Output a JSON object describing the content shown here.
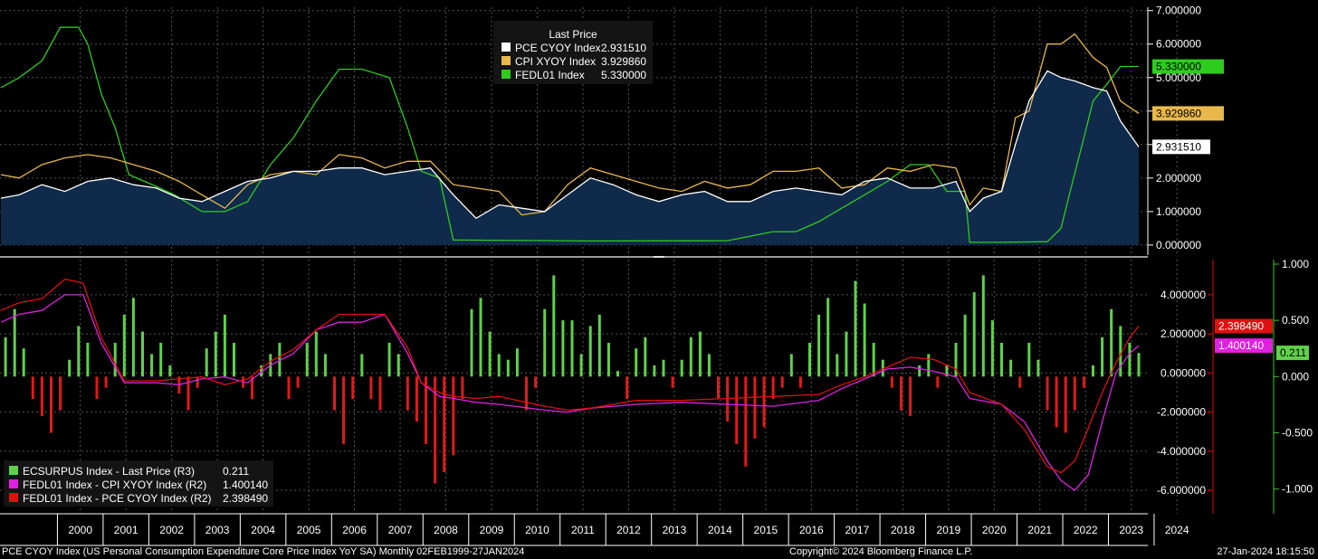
{
  "footer": {
    "left": "PCE CYOY Index (US Personal Consumption Expenditure Core Price Index YoY SA)  Monthly 02FEB1999-27JAN2024",
    "center": "Copyright© 2024 Bloomberg Finance L.P.",
    "right": "27-Jan-2024 18:15:50"
  },
  "colors": {
    "pce": "#ffffff",
    "cpi": "#e8b84a",
    "fed": "#2ecc1e",
    "area": "#0f2a4a",
    "bar_pos": "#5fd14a",
    "bar_neg": "#e01a1a",
    "spread_cpi": "#e020e0",
    "spread_pce": "#e01010",
    "axis_r2": "#e01010",
    "axis_r3": "#35c823",
    "grid": "#555555"
  },
  "chart_data": [
    {
      "type": "line",
      "panel": "top",
      "legend_title": "Last Price",
      "x_range": [
        1999.08,
        2024.08
      ],
      "ylim": [
        -0.3,
        7.1
      ],
      "y_ticks": [
        "7.000000",
        "6.000000",
        "5.000000",
        "4.000000",
        "3.000000",
        "2.000000",
        "1.000000",
        "0.000000"
      ],
      "y_tick_values": [
        7,
        6,
        5,
        4,
        3,
        2,
        1,
        0
      ],
      "x_ticks": [
        "2000",
        "2001",
        "2002",
        "2003",
        "2004",
        "2005",
        "2006",
        "2007",
        "2008",
        "2009",
        "2010",
        "2011",
        "2012",
        "2013",
        "2014",
        "2015",
        "2016",
        "2017",
        "2018",
        "2019",
        "2020",
        "2021",
        "2022",
        "2023",
        "2024"
      ],
      "series": [
        {
          "name": "PCE CYOY Index",
          "last": "2.931510",
          "fill": true,
          "x": [
            1999.1,
            1999.5,
            2000.0,
            2000.5,
            2001.0,
            2001.5,
            2002.0,
            2002.5,
            2003.0,
            2003.5,
            2004.0,
            2004.5,
            2005.0,
            2005.5,
            2006.0,
            2006.5,
            2007.0,
            2007.5,
            2008.0,
            2008.5,
            2009.0,
            2009.5,
            2010.0,
            2010.5,
            2011.0,
            2011.5,
            2012.0,
            2012.5,
            2013.0,
            2013.5,
            2014.0,
            2014.5,
            2015.0,
            2015.5,
            2016.0,
            2016.5,
            2017.0,
            2017.5,
            2018.0,
            2018.5,
            2019.0,
            2019.5,
            2020.0,
            2020.3,
            2020.6,
            2021.0,
            2021.3,
            2021.6,
            2022.0,
            2022.3,
            2022.6,
            2023.0,
            2023.3,
            2023.6,
            2024.0
          ],
          "values": [
            1.4,
            1.5,
            1.8,
            1.6,
            1.9,
            2.0,
            1.8,
            1.7,
            1.4,
            1.3,
            1.6,
            1.9,
            2.0,
            2.2,
            2.2,
            2.3,
            2.3,
            2.1,
            2.2,
            2.3,
            1.5,
            0.8,
            1.2,
            1.1,
            1.0,
            1.5,
            2.0,
            1.8,
            1.5,
            1.3,
            1.5,
            1.6,
            1.3,
            1.3,
            1.6,
            1.7,
            1.6,
            1.5,
            1.9,
            2.0,
            1.7,
            1.7,
            1.9,
            1.0,
            1.4,
            1.6,
            3.0,
            4.3,
            5.2,
            5.0,
            4.9,
            4.7,
            4.6,
            3.7,
            2.93
          ]
        },
        {
          "name": "CPI XYOY Index",
          "last": "3.929860",
          "x": [
            1999.1,
            1999.5,
            2000.0,
            2000.5,
            2001.0,
            2001.5,
            2002.0,
            2002.5,
            2003.0,
            2003.5,
            2004.0,
            2004.5,
            2005.0,
            2005.5,
            2006.0,
            2006.5,
            2007.0,
            2007.5,
            2008.0,
            2008.5,
            2009.0,
            2009.5,
            2010.0,
            2010.5,
            2011.0,
            2011.5,
            2012.0,
            2012.5,
            2013.0,
            2013.5,
            2014.0,
            2014.5,
            2015.0,
            2015.5,
            2016.0,
            2016.5,
            2017.0,
            2017.5,
            2018.0,
            2018.5,
            2019.0,
            2019.5,
            2020.0,
            2020.3,
            2020.6,
            2021.0,
            2021.3,
            2021.6,
            2022.0,
            2022.3,
            2022.6,
            2023.0,
            2023.3,
            2023.6,
            2024.0
          ],
          "values": [
            2.1,
            2.0,
            2.4,
            2.6,
            2.7,
            2.6,
            2.4,
            2.2,
            1.9,
            1.5,
            1.1,
            1.8,
            2.1,
            2.2,
            2.1,
            2.7,
            2.6,
            2.3,
            2.5,
            2.5,
            1.8,
            1.7,
            1.6,
            0.9,
            1.0,
            1.8,
            2.3,
            2.1,
            1.9,
            1.7,
            1.6,
            1.9,
            1.7,
            1.8,
            2.2,
            2.2,
            2.3,
            1.7,
            1.8,
            2.3,
            2.2,
            2.4,
            2.3,
            1.2,
            1.7,
            1.6,
            3.8,
            4.0,
            6.0,
            6.0,
            6.3,
            5.6,
            5.3,
            4.3,
            3.93
          ]
        },
        {
          "name": "FEDL01 Index",
          "last": "5.330000",
          "x": [
            1999.1,
            1999.5,
            2000.0,
            2000.4,
            2000.8,
            2001.0,
            2001.3,
            2001.6,
            2001.9,
            2002.5,
            2002.9,
            2003.5,
            2004.0,
            2004.5,
            2005.0,
            2005.5,
            2006.0,
            2006.5,
            2007.0,
            2007.6,
            2008.0,
            2008.3,
            2008.7,
            2009.0,
            2012.0,
            2015.0,
            2016.0,
            2016.5,
            2017.0,
            2017.5,
            2018.0,
            2018.5,
            2019.0,
            2019.4,
            2019.8,
            2020.2,
            2020.3,
            2021.0,
            2022.0,
            2022.3,
            2022.5,
            2022.8,
            2023.0,
            2023.3,
            2023.6,
            2024.0
          ],
          "values": [
            4.7,
            5.0,
            5.5,
            6.5,
            6.5,
            6.0,
            4.5,
            3.5,
            2.1,
            1.75,
            1.5,
            1.0,
            1.0,
            1.3,
            2.4,
            3.2,
            4.3,
            5.25,
            5.25,
            5.0,
            3.5,
            2.2,
            2.0,
            0.15,
            0.12,
            0.13,
            0.4,
            0.4,
            0.7,
            1.1,
            1.5,
            1.9,
            2.4,
            2.4,
            1.6,
            1.6,
            0.08,
            0.08,
            0.1,
            0.5,
            1.6,
            3.2,
            4.3,
            4.8,
            5.33,
            5.33
          ]
        }
      ]
    },
    {
      "type": "bar",
      "panel": "bottom",
      "x_range": [
        1999.08,
        2024.08
      ],
      "left_axis_label": "R2",
      "right_axis_label": "R3",
      "ylim_r2": [
        -7.2,
        5.8
      ],
      "r2_ticks": [
        "4.000000",
        "2.000000",
        "0.000000",
        "-2.000000",
        "-4.000000",
        "-6.000000"
      ],
      "r2_tick_values": [
        4,
        2,
        0,
        -2,
        -4,
        -6
      ],
      "ylim_r3": [
        -1.22,
        1.04
      ],
      "r3_ticks": [
        "1.000",
        "0.500",
        "0.000",
        "-0.500",
        "-1.000"
      ],
      "r3_tick_values": [
        1,
        0.5,
        0,
        -0.5,
        -1
      ],
      "series": [
        {
          "name": "ECSURPUS Index - Last Price (R3)",
          "last": "0.211",
          "axis": "R3",
          "type": "bar",
          "x": [
            1999.2,
            1999.4,
            1999.6,
            1999.8,
            2000.0,
            2000.2,
            2000.4,
            2000.6,
            2000.8,
            2001.0,
            2001.2,
            2001.4,
            2001.6,
            2001.8,
            2002.0,
            2002.2,
            2002.4,
            2002.6,
            2002.8,
            2003.0,
            2003.2,
            2003.4,
            2003.6,
            2003.8,
            2004.0,
            2004.2,
            2004.4,
            2004.6,
            2004.8,
            2005.0,
            2005.2,
            2005.4,
            2005.6,
            2005.8,
            2006.0,
            2006.2,
            2006.4,
            2006.6,
            2006.8,
            2007.0,
            2007.2,
            2007.4,
            2007.6,
            2007.8,
            2008.0,
            2008.2,
            2008.4,
            2008.6,
            2008.8,
            2009.0,
            2009.2,
            2009.4,
            2009.6,
            2009.8,
            2010.0,
            2010.2,
            2010.4,
            2010.6,
            2010.8,
            2011.0,
            2011.2,
            2011.4,
            2011.6,
            2011.8,
            2012.0,
            2012.2,
            2012.4,
            2012.6,
            2012.8,
            2013.0,
            2013.2,
            2013.4,
            2013.6,
            2013.8,
            2014.0,
            2014.2,
            2014.4,
            2014.6,
            2014.8,
            2015.0,
            2015.2,
            2015.4,
            2015.6,
            2015.8,
            2016.0,
            2016.2,
            2016.4,
            2016.6,
            2016.8,
            2017.0,
            2017.2,
            2017.4,
            2017.6,
            2017.8,
            2018.0,
            2018.2,
            2018.4,
            2018.6,
            2018.8,
            2019.0,
            2019.2,
            2019.4,
            2019.6,
            2019.8,
            2020.0,
            2020.2,
            2020.4,
            2020.6,
            2020.8,
            2021.0,
            2021.2,
            2021.4,
            2021.6,
            2021.8,
            2022.0,
            2022.2,
            2022.4,
            2022.6,
            2022.8,
            2023.0,
            2023.2,
            2023.4,
            2023.6,
            2023.8,
            2024.0
          ],
          "values": [
            0.35,
            0.6,
            0.25,
            -0.2,
            -0.35,
            -0.5,
            -0.3,
            0.15,
            0.45,
            0.3,
            -0.2,
            -0.1,
            0.3,
            0.55,
            0.7,
            0.4,
            0.2,
            0.3,
            0.1,
            -0.15,
            -0.3,
            -0.1,
            0.25,
            0.4,
            0.55,
            0.3,
            -0.1,
            -0.2,
            0.1,
            0.2,
            0.3,
            -0.2,
            -0.1,
            0.3,
            0.4,
            0.2,
            -0.3,
            -0.6,
            -0.2,
            0.2,
            -0.2,
            -0.3,
            0.3,
            0.2,
            -0.3,
            -0.4,
            -0.6,
            -0.95,
            -0.85,
            -0.7,
            -0.2,
            0.6,
            0.7,
            0.4,
            0.2,
            0.15,
            0.25,
            -0.3,
            -0.1,
            0.6,
            0.9,
            0.5,
            0.5,
            0.2,
            0.45,
            0.55,
            0.3,
            0.05,
            -0.2,
            0.25,
            0.35,
            0.1,
            0.15,
            -0.1,
            0.15,
            0.35,
            0.4,
            0.2,
            -0.2,
            -0.4,
            -0.6,
            -0.8,
            -0.55,
            -0.45,
            -0.2,
            -0.1,
            0.2,
            -0.1,
            0.3,
            0.55,
            0.7,
            0.2,
            0.4,
            0.85,
            0.65,
            0.3,
            0.15,
            -0.1,
            -0.3,
            -0.35,
            0.1,
            0.2,
            -0.1,
            0.1,
            0.3,
            0.55,
            0.75,
            0.9,
            0.5,
            0.3,
            0.15,
            -0.1,
            0.3,
            0.15,
            -0.3,
            -0.45,
            -0.5,
            -0.3,
            -0.1,
            0.1,
            0.35,
            0.6,
            0.45,
            0.3,
            0.21
          ]
        },
        {
          "name": "FEDL01 Index - CPI XYOY Index (R2)",
          "last": "1.400140",
          "axis": "R2",
          "type": "line",
          "x": [
            1999.1,
            1999.5,
            2000.0,
            2000.5,
            2000.9,
            2001.3,
            2001.8,
            2002.5,
            2003.0,
            2003.5,
            2004.0,
            2004.5,
            2005.0,
            2005.5,
            2006.0,
            2006.5,
            2007.0,
            2007.5,
            2008.0,
            2008.3,
            2008.7,
            2009.0,
            2009.5,
            2010.0,
            2011.0,
            2011.5,
            2012.0,
            2013.0,
            2014.0,
            2015.0,
            2016.0,
            2017.0,
            2017.5,
            2018.0,
            2018.5,
            2019.0,
            2019.5,
            2020.0,
            2020.3,
            2021.0,
            2021.5,
            2022.0,
            2022.3,
            2022.6,
            2022.9,
            2023.2,
            2023.5,
            2023.8,
            2024.0
          ],
          "values": [
            2.6,
            3.0,
            3.2,
            4.0,
            4.0,
            1.5,
            -0.5,
            -0.5,
            -0.6,
            -0.3,
            -0.2,
            -0.5,
            0.4,
            1.0,
            2.2,
            2.6,
            2.6,
            3.0,
            1.0,
            -0.5,
            -1.2,
            -1.3,
            -1.5,
            -1.6,
            -1.9,
            -2.0,
            -1.8,
            -1.6,
            -1.5,
            -1.6,
            -1.7,
            -1.4,
            -0.8,
            -0.3,
            0.2,
            0.3,
            0.1,
            -0.2,
            -1.3,
            -1.6,
            -2.5,
            -4.5,
            -5.5,
            -6.0,
            -5.2,
            -2.5,
            0.0,
            1.0,
            1.4
          ]
        },
        {
          "name": "FEDL01 Index - PCE CYOY Index (R2)",
          "last": "2.398490",
          "axis": "R2",
          "type": "line",
          "x": [
            1999.1,
            1999.5,
            2000.0,
            2000.5,
            2000.9,
            2001.3,
            2001.8,
            2002.5,
            2003.0,
            2003.5,
            2004.0,
            2004.5,
            2005.0,
            2005.5,
            2006.0,
            2006.5,
            2007.0,
            2007.5,
            2008.0,
            2008.3,
            2008.7,
            2009.0,
            2009.5,
            2010.0,
            2011.0,
            2011.5,
            2012.0,
            2013.0,
            2014.0,
            2015.0,
            2016.0,
            2017.0,
            2017.5,
            2018.0,
            2018.5,
            2019.0,
            2019.5,
            2020.0,
            2020.3,
            2021.0,
            2021.5,
            2022.0,
            2022.3,
            2022.6,
            2022.9,
            2023.2,
            2023.5,
            2023.8,
            2024.0
          ],
          "values": [
            3.2,
            3.6,
            3.8,
            4.8,
            4.6,
            1.8,
            -0.4,
            -0.4,
            -0.3,
            -0.2,
            -0.6,
            -0.3,
            0.6,
            1.2,
            2.2,
            3.0,
            3.0,
            3.0,
            1.3,
            -0.5,
            -1.0,
            -1.2,
            -1.3,
            -1.2,
            -1.7,
            -1.9,
            -1.8,
            -1.4,
            -1.4,
            -1.3,
            -1.2,
            -1.1,
            -0.6,
            -0.2,
            0.3,
            0.8,
            0.7,
            0.2,
            -1.0,
            -1.6,
            -2.9,
            -4.8,
            -5.1,
            -4.5,
            -2.8,
            -1.0,
            0.5,
            1.8,
            2.4
          ]
        }
      ]
    }
  ]
}
